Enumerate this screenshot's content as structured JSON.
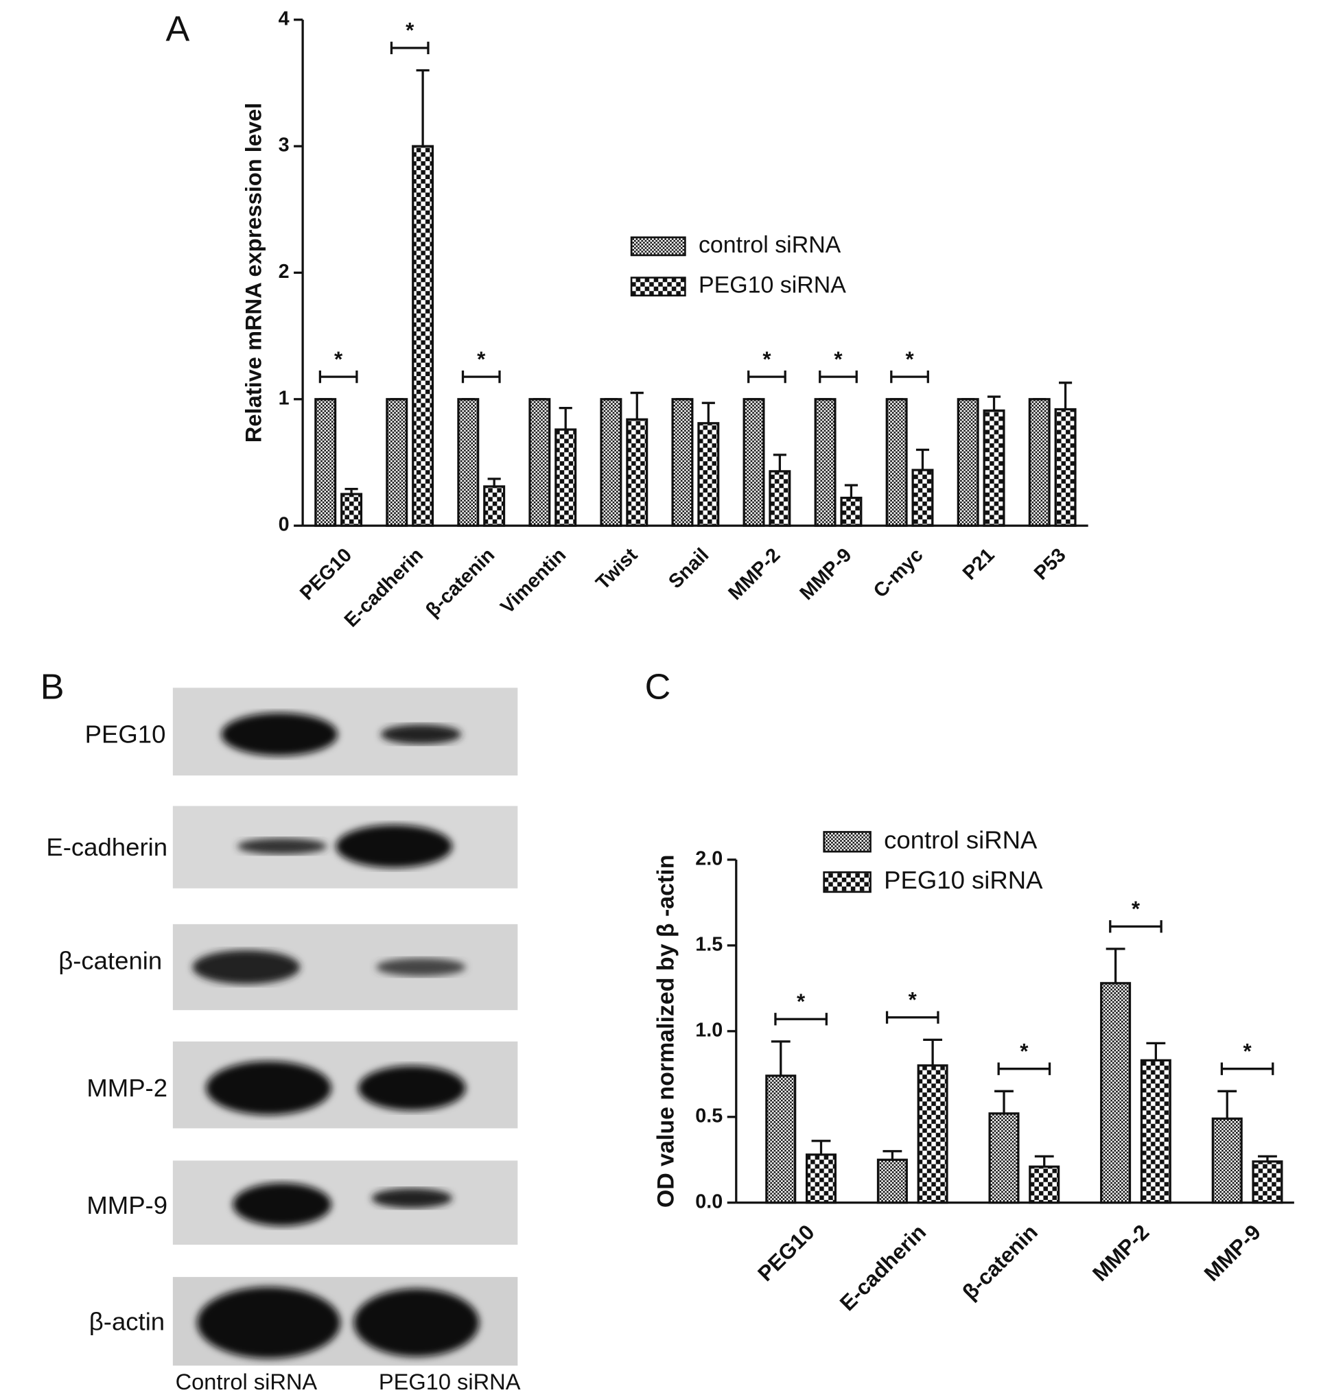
{
  "chart_data": [
    {
      "type": "bar",
      "label": "A",
      "ylabel": "Relative mRNA expression level",
      "categories": [
        "PEG10",
        "E-cadherin",
        "β-catenin",
        "Vimentin",
        "Twist",
        "Snail",
        "MMP-2",
        "MMP-9",
        "C-myc",
        "P21",
        "P53"
      ],
      "series": [
        {
          "name": "control siRNA",
          "color": "#111111",
          "values": [
            1,
            1,
            1,
            1,
            1,
            1,
            1,
            1,
            1,
            1,
            1
          ],
          "errors": [
            0,
            0,
            0,
            0,
            0,
            0,
            0,
            0,
            0,
            0,
            0
          ]
        },
        {
          "name": "PEG10 siRNA",
          "color": "#111111",
          "values": [
            0.25,
            3.0,
            0.31,
            0.76,
            0.84,
            0.81,
            0.43,
            0.22,
            0.44,
            0.91,
            0.92
          ],
          "errors": [
            0.04,
            0.6,
            0.06,
            0.17,
            0.21,
            0.16,
            0.13,
            0.1,
            0.16,
            0.11,
            0.21
          ]
        }
      ],
      "annotations": [
        "*",
        "*",
        "*",
        null,
        null,
        null,
        "*",
        "*",
        "*",
        null,
        null
      ],
      "ylim": [
        0,
        4
      ],
      "yticks": [
        0,
        1,
        2,
        3,
        4
      ]
    },
    {
      "type": "bar",
      "label": "C",
      "ylabel": "OD value normalized by β -actin",
      "categories": [
        "PEG10",
        "E-cadherin",
        "β-catenin",
        "MMP-2",
        "MMP-9"
      ],
      "series": [
        {
          "name": "control siRNA",
          "color": "#111111",
          "values": [
            0.74,
            0.25,
            0.52,
            1.28,
            0.49
          ],
          "errors": [
            0.2,
            0.05,
            0.13,
            0.2,
            0.16
          ]
        },
        {
          "name": "PEG10 siRNA",
          "color": "#111111",
          "values": [
            0.28,
            0.8,
            0.21,
            0.83,
            0.24
          ],
          "errors": [
            0.08,
            0.15,
            0.06,
            0.1,
            0.03
          ]
        }
      ],
      "annotations": [
        "*",
        "*",
        "*",
        "*",
        "*"
      ],
      "ylim": [
        0,
        2
      ],
      "yticks": [
        {
          "value": 0,
          "label": "0.0"
        },
        {
          "value": 0.5,
          "label": "0.5"
        },
        {
          "value": 1,
          "label": "1.0"
        },
        {
          "value": 1.5,
          "label": "1.5"
        },
        {
          "value": 2,
          "label": "2.0"
        }
      ]
    }
  ],
  "blot": {
    "label": "B",
    "rows": [
      "PEG10",
      "E-cadherin",
      "β-catenin",
      "MMP-2",
      "MMP-9",
      "β-actin"
    ],
    "lanes": [
      "Control siRNA",
      "PEG10 siRNA"
    ]
  }
}
